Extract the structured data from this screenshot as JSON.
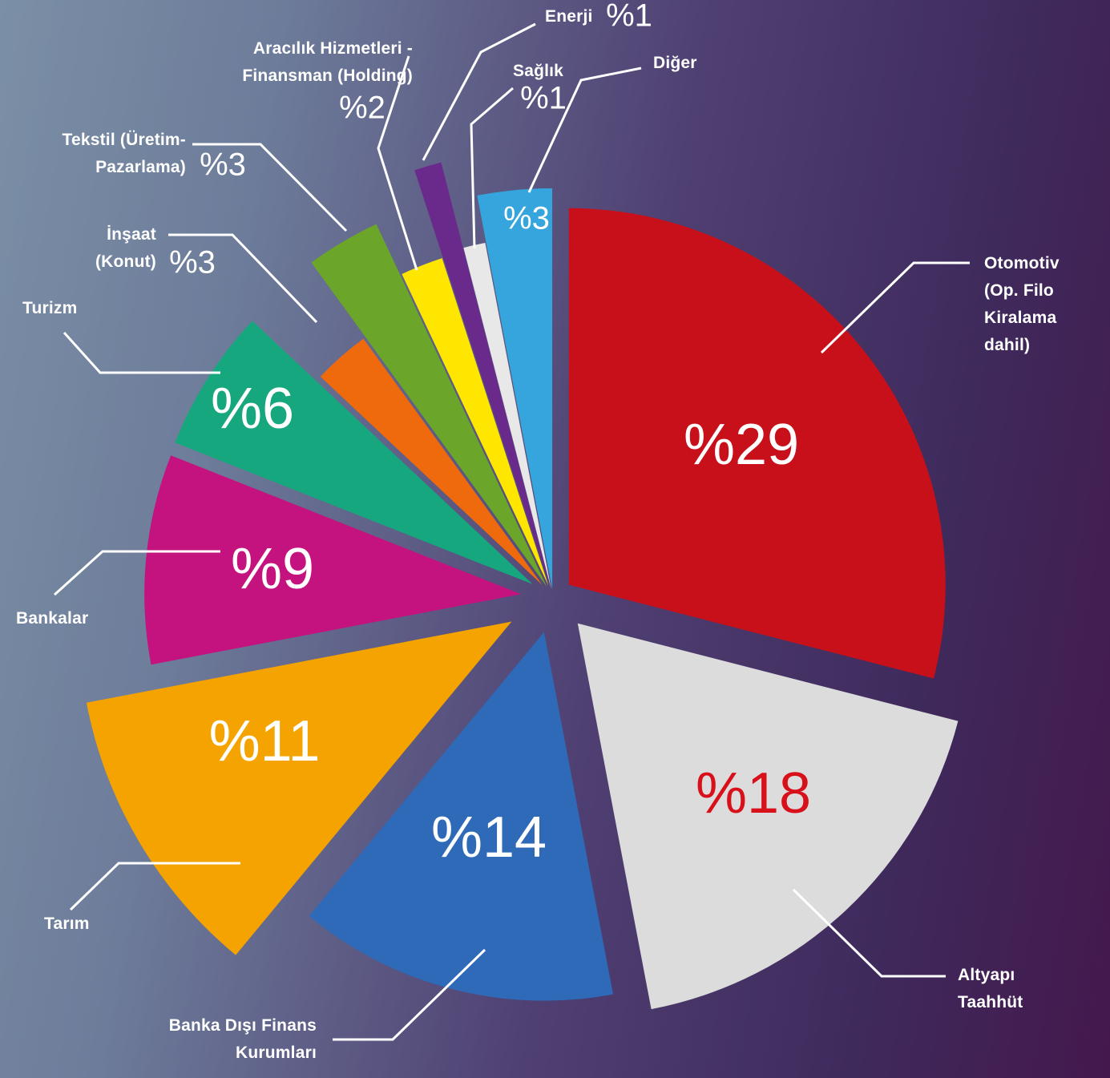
{
  "chart_data": {
    "type": "pie",
    "categories": [
      "Otomotiv (Op. Filo Kiralama dahil)",
      "Altyapı Taahhüt",
      "Banka Dışı Finans Kurumları",
      "Tarım",
      "Bankalar",
      "Turizm",
      "İnşaat (Konut)",
      "Tekstil (Üretim-Pazarlama)",
      "Aracılık Hizmetleri - Finansman (Holding)",
      "Enerji",
      "Sağlık",
      "Diğer"
    ],
    "values": [
      29,
      18,
      14,
      11,
      9,
      6,
      3,
      3,
      2,
      1,
      1,
      3
    ],
    "value_labels": [
      "%29",
      "%18",
      "%14",
      "%11",
      "%9",
      "%6",
      "%3",
      "%3",
      "%2",
      "%1",
      "%1",
      "%3"
    ],
    "colors": [
      "#c8101a",
      "#dcdcdc",
      "#2f6ab8",
      "#f5a300",
      "#c4127f",
      "#17a77f",
      "#ef6a0c",
      "#6ba62a",
      "#ffe600",
      "#6a2a8c",
      "#e8e8e8",
      "#37a5dd"
    ]
  }
}
